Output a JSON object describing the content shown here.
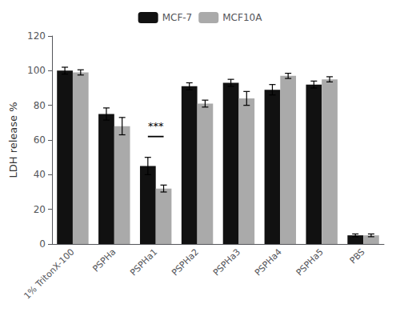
{
  "chart_data": {
    "type": "bar",
    "categories": [
      "1% TritonX-100",
      "PSPHa",
      "PSPHa1",
      "PSPHa2",
      "PSPHa3",
      "PSPHa4",
      "PSPHa5",
      "PBS"
    ],
    "series": [
      {
        "name": "MCF-7",
        "color": "#111111",
        "values": [
          100,
          75,
          45,
          91,
          93,
          89,
          92,
          5
        ],
        "errors": [
          2,
          3.5,
          5,
          2,
          2,
          3,
          2,
          0.8
        ]
      },
      {
        "name": "MCF10A",
        "color": "#aaaaaa",
        "values": [
          99,
          68,
          32,
          81,
          84,
          97,
          95,
          5
        ],
        "errors": [
          1.5,
          5,
          2,
          2,
          4,
          1.5,
          1.5,
          0.8
        ]
      }
    ],
    "ylabel": "LDH release %",
    "ylim": [
      0,
      120
    ],
    "yticks": [
      0,
      20,
      40,
      60,
      80,
      100,
      120
    ],
    "annotations": [
      {
        "text": "***",
        "category": "PSPHa1",
        "y": 65,
        "line_y": 62
      }
    ],
    "legend": "upper center",
    "grid": false
  }
}
